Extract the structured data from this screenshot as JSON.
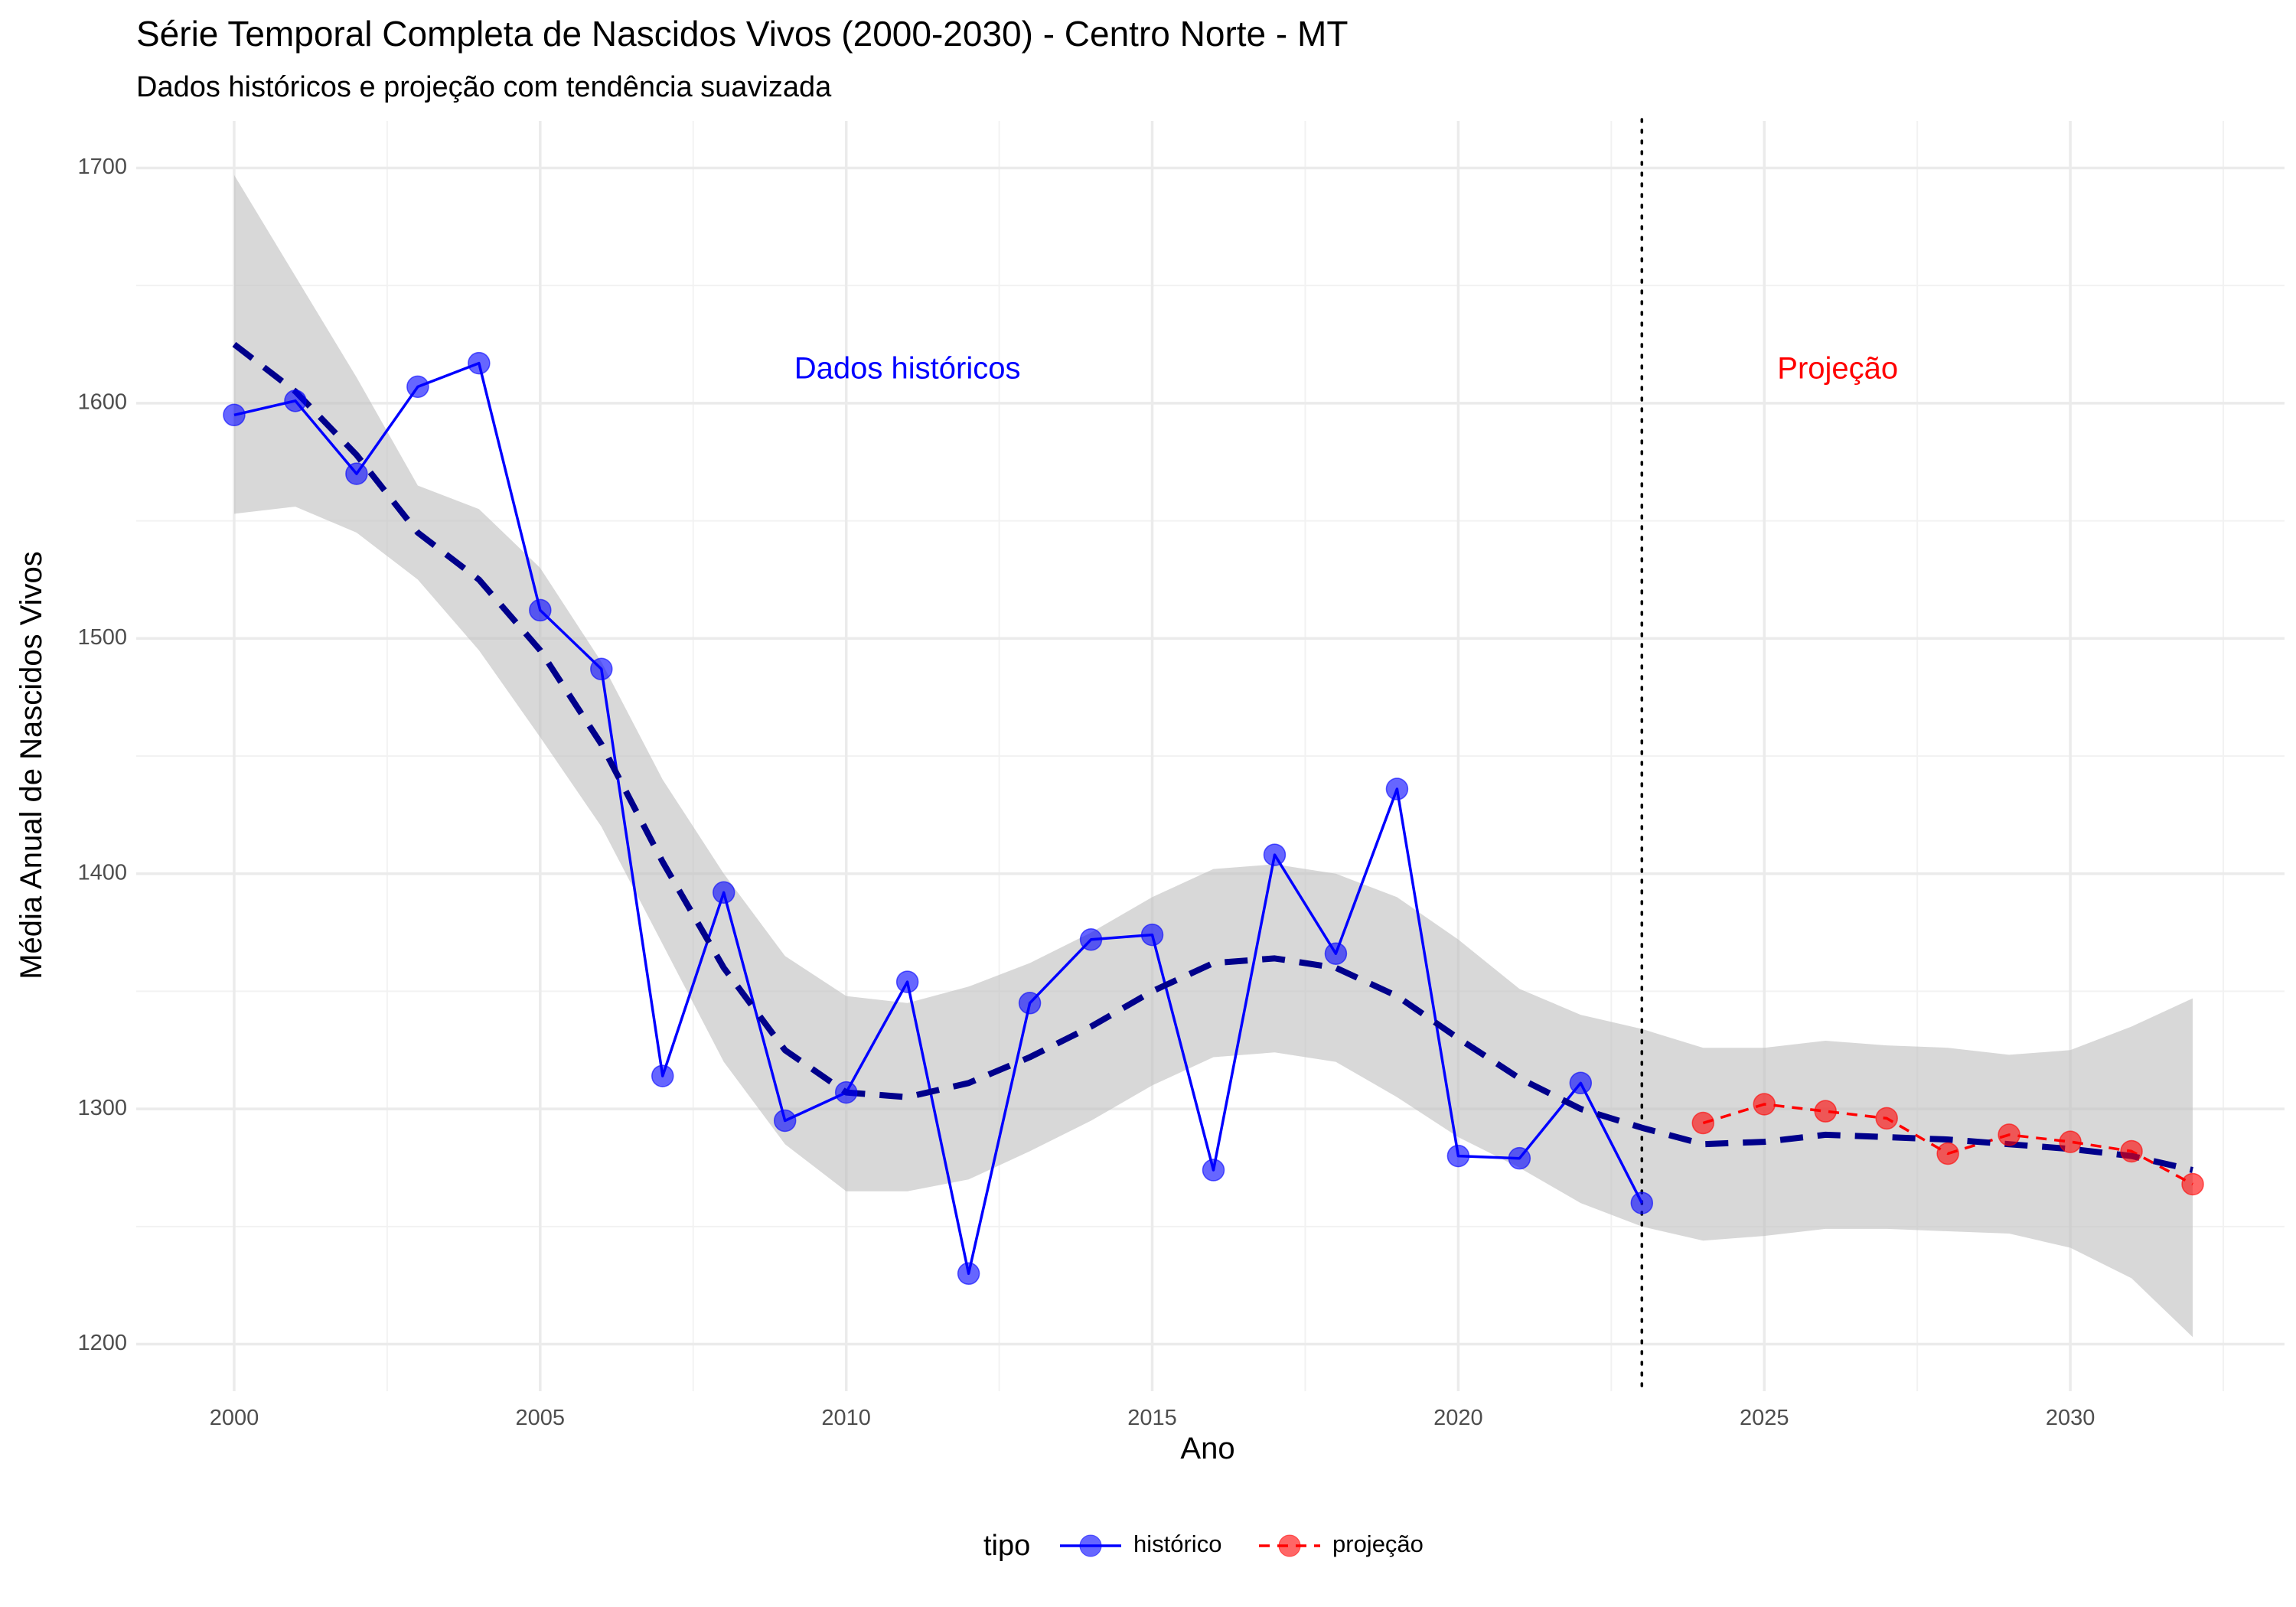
{
  "chart_data": {
    "type": "line",
    "title": "Série Temporal Completa de Nascidos Vivos (2000-2030) -  Centro Norte - MT",
    "subtitle": "Dados históricos e projeção com tendência suavizada",
    "xlabel": "Ano",
    "ylabel": "Média Anual de Nascidos Vivos",
    "xlim": [
      1998.4,
      2033.5
    ],
    "ylim": [
      1180,
      1720
    ],
    "x_ticks": [
      2000,
      2005,
      2010,
      2015,
      2020,
      2025,
      2030
    ],
    "y_ticks": [
      1200,
      1300,
      1400,
      1500,
      1600,
      1700
    ],
    "grid": true,
    "legend_position": "bottom",
    "legend_title": "tipo",
    "series": [
      {
        "name": "histórico",
        "color": "#0000ff",
        "x": [
          2000,
          2001,
          2002,
          2003,
          2004,
          2005,
          2006,
          2007,
          2008,
          2009,
          2010,
          2011,
          2012,
          2013,
          2014,
          2015,
          2016,
          2017,
          2018,
          2019,
          2020,
          2021,
          2022,
          2023
        ],
        "y": [
          1595,
          1601,
          1570,
          1607,
          1617,
          1512,
          1487,
          1314,
          1392,
          1295,
          1307,
          1354,
          1230,
          1345,
          1372,
          1374,
          1274,
          1408,
          1366,
          1436,
          1280,
          1279,
          1311,
          1260
        ]
      },
      {
        "name": "projeção",
        "color": "#ff0000",
        "x": [
          2024,
          2025,
          2026,
          2027,
          2028,
          2029,
          2030,
          2031,
          2032
        ],
        "y": [
          1294,
          1302,
          1299,
          1296,
          1281,
          1289,
          1286,
          1282,
          1268
        ]
      }
    ],
    "trend": {
      "color": "#00008b",
      "band_color": "#bebebe",
      "x": [
        2000,
        2001,
        2002,
        2003,
        2004,
        2005,
        2006,
        2007,
        2008,
        2009,
        2010,
        2011,
        2012,
        2013,
        2014,
        2015,
        2016,
        2017,
        2018,
        2019,
        2020,
        2021,
        2022,
        2023,
        2024,
        2025,
        2026,
        2027,
        2028,
        2029,
        2030,
        2031,
        2032
      ],
      "y": [
        1625,
        1605,
        1578,
        1545,
        1525,
        1495,
        1455,
        1405,
        1360,
        1325,
        1307,
        1305,
        1311,
        1322,
        1335,
        1350,
        1362,
        1364,
        1360,
        1348,
        1330,
        1313,
        1300,
        1292,
        1285,
        1286,
        1289,
        1288,
        1287,
        1285,
        1283,
        1280,
        1274
      ],
      "lower": [
        1553,
        1556,
        1545,
        1525,
        1495,
        1458,
        1420,
        1370,
        1320,
        1285,
        1265,
        1265,
        1270,
        1282,
        1295,
        1310,
        1322,
        1324,
        1320,
        1305,
        1288,
        1275,
        1260,
        1250,
        1244,
        1246,
        1249,
        1249,
        1248,
        1247,
        1241,
        1228,
        1203
      ],
      "upper": [
        1697,
        1654,
        1611,
        1565,
        1555,
        1530,
        1490,
        1440,
        1400,
        1365,
        1348,
        1345,
        1352,
        1362,
        1375,
        1390,
        1402,
        1404,
        1400,
        1390,
        1372,
        1351,
        1340,
        1334,
        1326,
        1326,
        1329,
        1327,
        1326,
        1323,
        1325,
        1335,
        1347
      ]
    },
    "cutoff": {
      "x": 2023
    },
    "annotations": [
      {
        "text": "Dados históricos",
        "x": 2011,
        "y": 1614,
        "color": "#0000ff"
      },
      {
        "text": "Projeção",
        "x": 2026.2,
        "y": 1614,
        "color": "#ff0000"
      }
    ]
  }
}
